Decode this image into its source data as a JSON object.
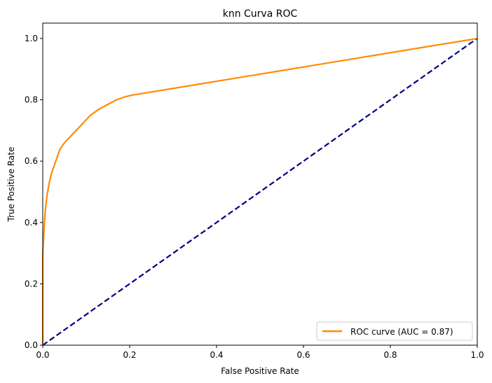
{
  "chart_data": {
    "type": "line",
    "title": "knn Curva ROC",
    "xlabel": "False Positive Rate",
    "ylabel": "True Positive Rate",
    "xlim": [
      0.0,
      1.0
    ],
    "ylim": [
      0.0,
      1.05
    ],
    "xticks": [
      "0.0",
      "0.2",
      "0.4",
      "0.6",
      "0.8",
      "1.0"
    ],
    "yticks": [
      "0.0",
      "0.2",
      "0.4",
      "0.6",
      "0.8",
      "1.0"
    ],
    "grid": false,
    "legend_position": "lower-right",
    "series": [
      {
        "name": "ROC curve (AUC = 0.87)",
        "color": "#ff8c00",
        "style": "solid",
        "x": [
          0.0,
          0.0,
          0.002,
          0.004,
          0.006,
          0.01,
          0.015,
          0.02,
          0.03,
          0.04,
          0.05,
          0.07,
          0.09,
          0.11,
          0.13,
          0.15,
          0.17,
          0.19,
          0.205,
          1.0
        ],
        "y": [
          0.0,
          0.3,
          0.35,
          0.4,
          0.44,
          0.49,
          0.53,
          0.56,
          0.6,
          0.64,
          0.66,
          0.69,
          0.72,
          0.75,
          0.77,
          0.785,
          0.8,
          0.81,
          0.815,
          1.0
        ]
      },
      {
        "color": "#000080",
        "style": "dashed",
        "x": [
          0.0,
          1.0
        ],
        "y": [
          0.0,
          1.0
        ]
      }
    ]
  }
}
